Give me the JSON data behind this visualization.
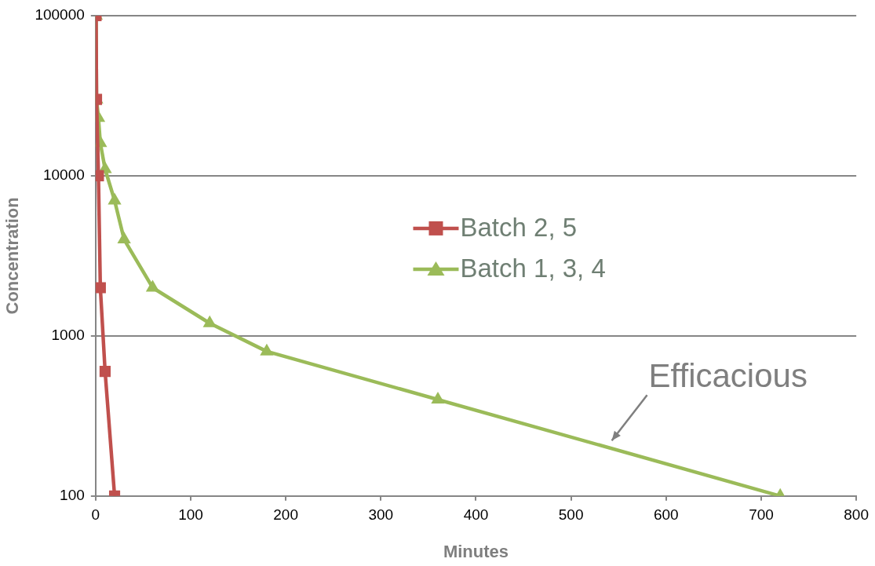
{
  "chart_data": {
    "type": "line",
    "xlabel": "Minutes",
    "ylabel": "Concentration",
    "xlim": [
      0,
      800
    ],
    "xticks": [
      0,
      100,
      200,
      300,
      400,
      500,
      600,
      700,
      800
    ],
    "ylim": [
      100,
      100000
    ],
    "yticks": [
      100,
      1000,
      10000,
      100000
    ],
    "log": "y",
    "grid": "y",
    "legend": "center",
    "line_style": "solid",
    "series": [
      {
        "name": "Batch 2, 5",
        "color": "#c0504d",
        "marker": "square",
        "x": [
          0.5,
          1,
          3,
          5,
          10,
          20
        ],
        "values": [
          100000,
          30000,
          10000,
          2000,
          600,
          100
        ]
      },
      {
        "name": "Batch 1, 3, 4",
        "color": "#9bbb59",
        "marker": "triangle",
        "x": [
          0.5,
          1,
          3,
          5,
          10,
          20,
          30,
          60,
          120,
          180,
          360,
          720
        ],
        "values": [
          100000,
          30000,
          23000,
          16000,
          11000,
          7000,
          4000,
          2000,
          1200,
          800,
          400,
          100
        ]
      }
    ],
    "annotations": [
      "Efficacious"
    ]
  }
}
